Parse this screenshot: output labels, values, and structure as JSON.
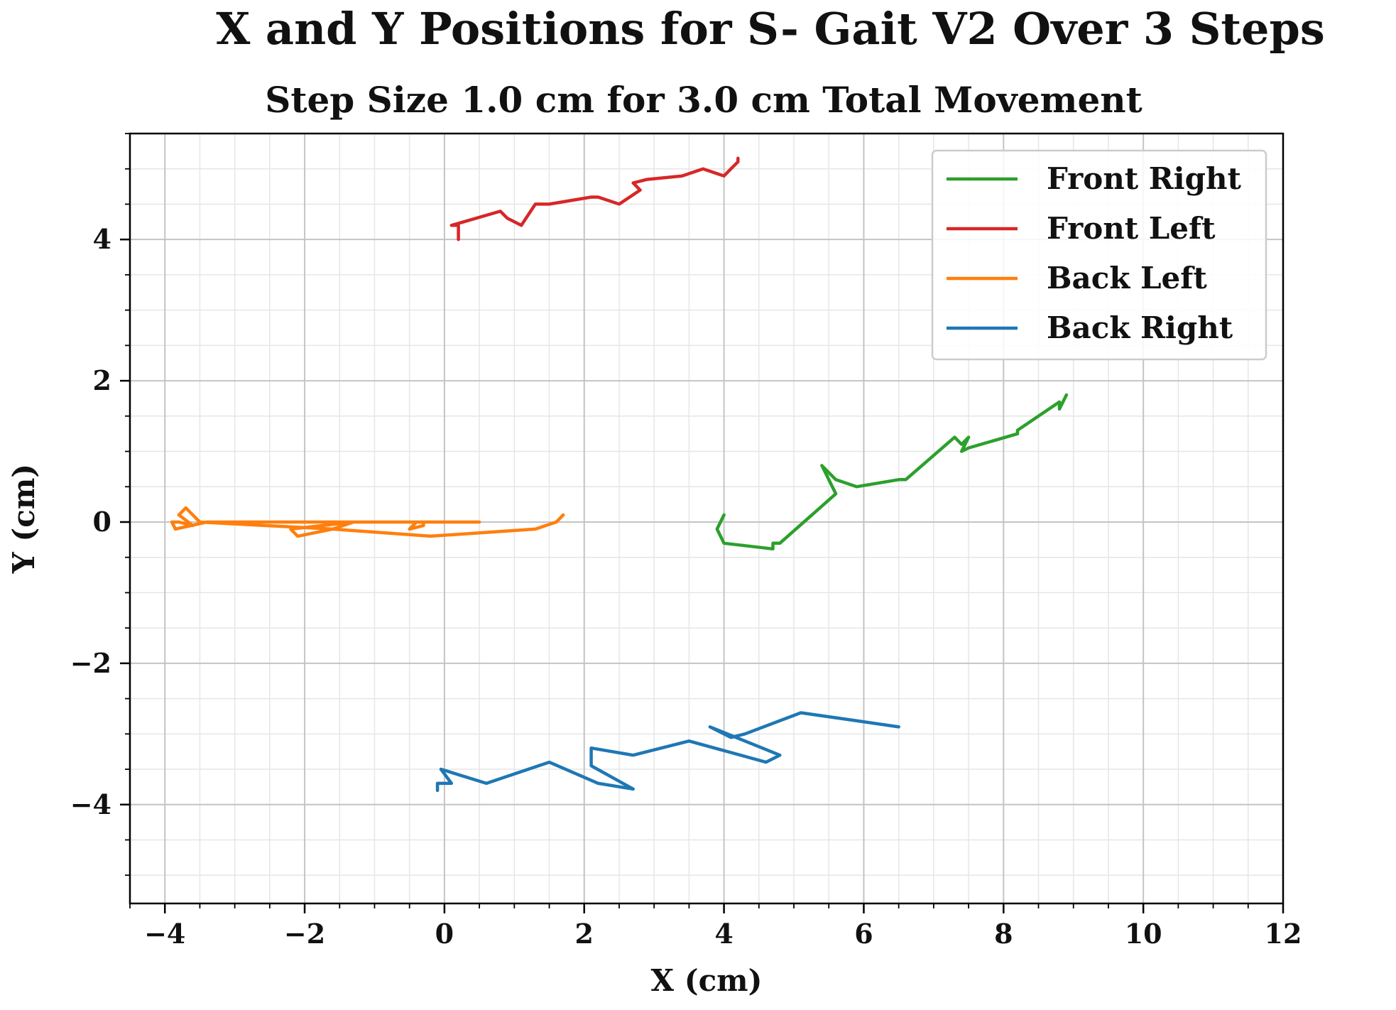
{
  "chart_data": {
    "type": "line",
    "title": "X and Y Positions for S- Gait V2 Over 3 Steps",
    "subtitle": "Step Size 1.0 cm for 3.0 cm Total Movement",
    "xlabel": "X (cm)",
    "ylabel": "Y (cm)",
    "xlim": [
      -4.5,
      12
    ],
    "ylim": [
      -5.4,
      5.5
    ],
    "x_ticks": [
      -4,
      -2,
      0,
      2,
      4,
      6,
      8,
      10,
      12
    ],
    "x_tick_labels": [
      "−4",
      "−2",
      "0",
      "2",
      "4",
      "6",
      "8",
      "10",
      "12"
    ],
    "y_ticks": [
      -4,
      -2,
      0,
      2,
      4
    ],
    "y_tick_labels": [
      "−4",
      "−2",
      "0",
      "2",
      "4"
    ],
    "grid": true,
    "minor_grid": true,
    "legend_position": "top-right",
    "series": [
      {
        "name": "Front Right",
        "color": "#2ca02c",
        "x": [
          4.0,
          3.9,
          4.0,
          4.7,
          4.7,
          4.8,
          5.6,
          5.4,
          5.6,
          5.9,
          6.5,
          6.6,
          7.3,
          7.4,
          7.5,
          7.4,
          7.5,
          8.2,
          8.2,
          8.8,
          8.8,
          8.9
        ],
        "y": [
          0.1,
          -0.1,
          -0.3,
          -0.38,
          -0.3,
          -0.3,
          0.4,
          0.8,
          0.6,
          0.5,
          0.6,
          0.6,
          1.2,
          1.1,
          1.2,
          1.0,
          1.05,
          1.25,
          1.3,
          1.7,
          1.6,
          1.8
        ]
      },
      {
        "name": "Front Left",
        "color": "#d62728",
        "x": [
          0.2,
          0.2,
          0.1,
          0.8,
          0.9,
          1.1,
          1.3,
          1.5,
          2.1,
          2.2,
          2.5,
          2.8,
          2.7,
          2.9,
          3.4,
          3.7,
          4.0,
          4.1,
          4.2,
          4.2
        ],
        "y": [
          4.0,
          4.2,
          4.2,
          4.4,
          4.3,
          4.2,
          4.5,
          4.5,
          4.6,
          4.6,
          4.5,
          4.7,
          4.8,
          4.85,
          4.9,
          5.0,
          4.9,
          5.0,
          5.1,
          5.15
        ]
      },
      {
        "name": "Back Left",
        "color": "#ff7f0e",
        "x": [
          1.7,
          1.6,
          1.3,
          -0.2,
          -1.6,
          -2.1,
          -2.2,
          -2.2,
          -1.3,
          -1.6,
          -3.5,
          -3.7,
          -3.8,
          -3.6,
          -3.8,
          -3.9,
          -3.85,
          -3.4,
          0.5,
          -0.3,
          -0.3,
          -0.5,
          -0.4,
          0.5
        ],
        "y": [
          0.1,
          0.0,
          -0.1,
          -0.2,
          -0.1,
          -0.2,
          -0.1,
          -0.1,
          0.0,
          -0.1,
          0.0,
          0.2,
          0.1,
          -0.05,
          0.0,
          0.0,
          -0.1,
          0.0,
          0.0,
          0.0,
          -0.05,
          -0.1,
          0.0,
          0.0
        ]
      },
      {
        "name": "Back Right",
        "color": "#1f77b4",
        "x": [
          -0.1,
          -0.1,
          0.1,
          -0.05,
          0.6,
          1.5,
          2.2,
          2.7,
          2.1,
          2.1,
          2.1,
          2.7,
          3.5,
          4.6,
          4.8,
          3.8,
          4.1,
          4.3,
          5.1,
          5.8,
          6.5
        ],
        "y": [
          -3.8,
          -3.7,
          -3.7,
          -3.5,
          -3.7,
          -3.4,
          -3.7,
          -3.78,
          -3.45,
          -3.35,
          -3.2,
          -3.3,
          -3.1,
          -3.4,
          -3.3,
          -2.9,
          -3.05,
          -3.0,
          -2.7,
          -2.8,
          -2.9
        ]
      }
    ]
  }
}
